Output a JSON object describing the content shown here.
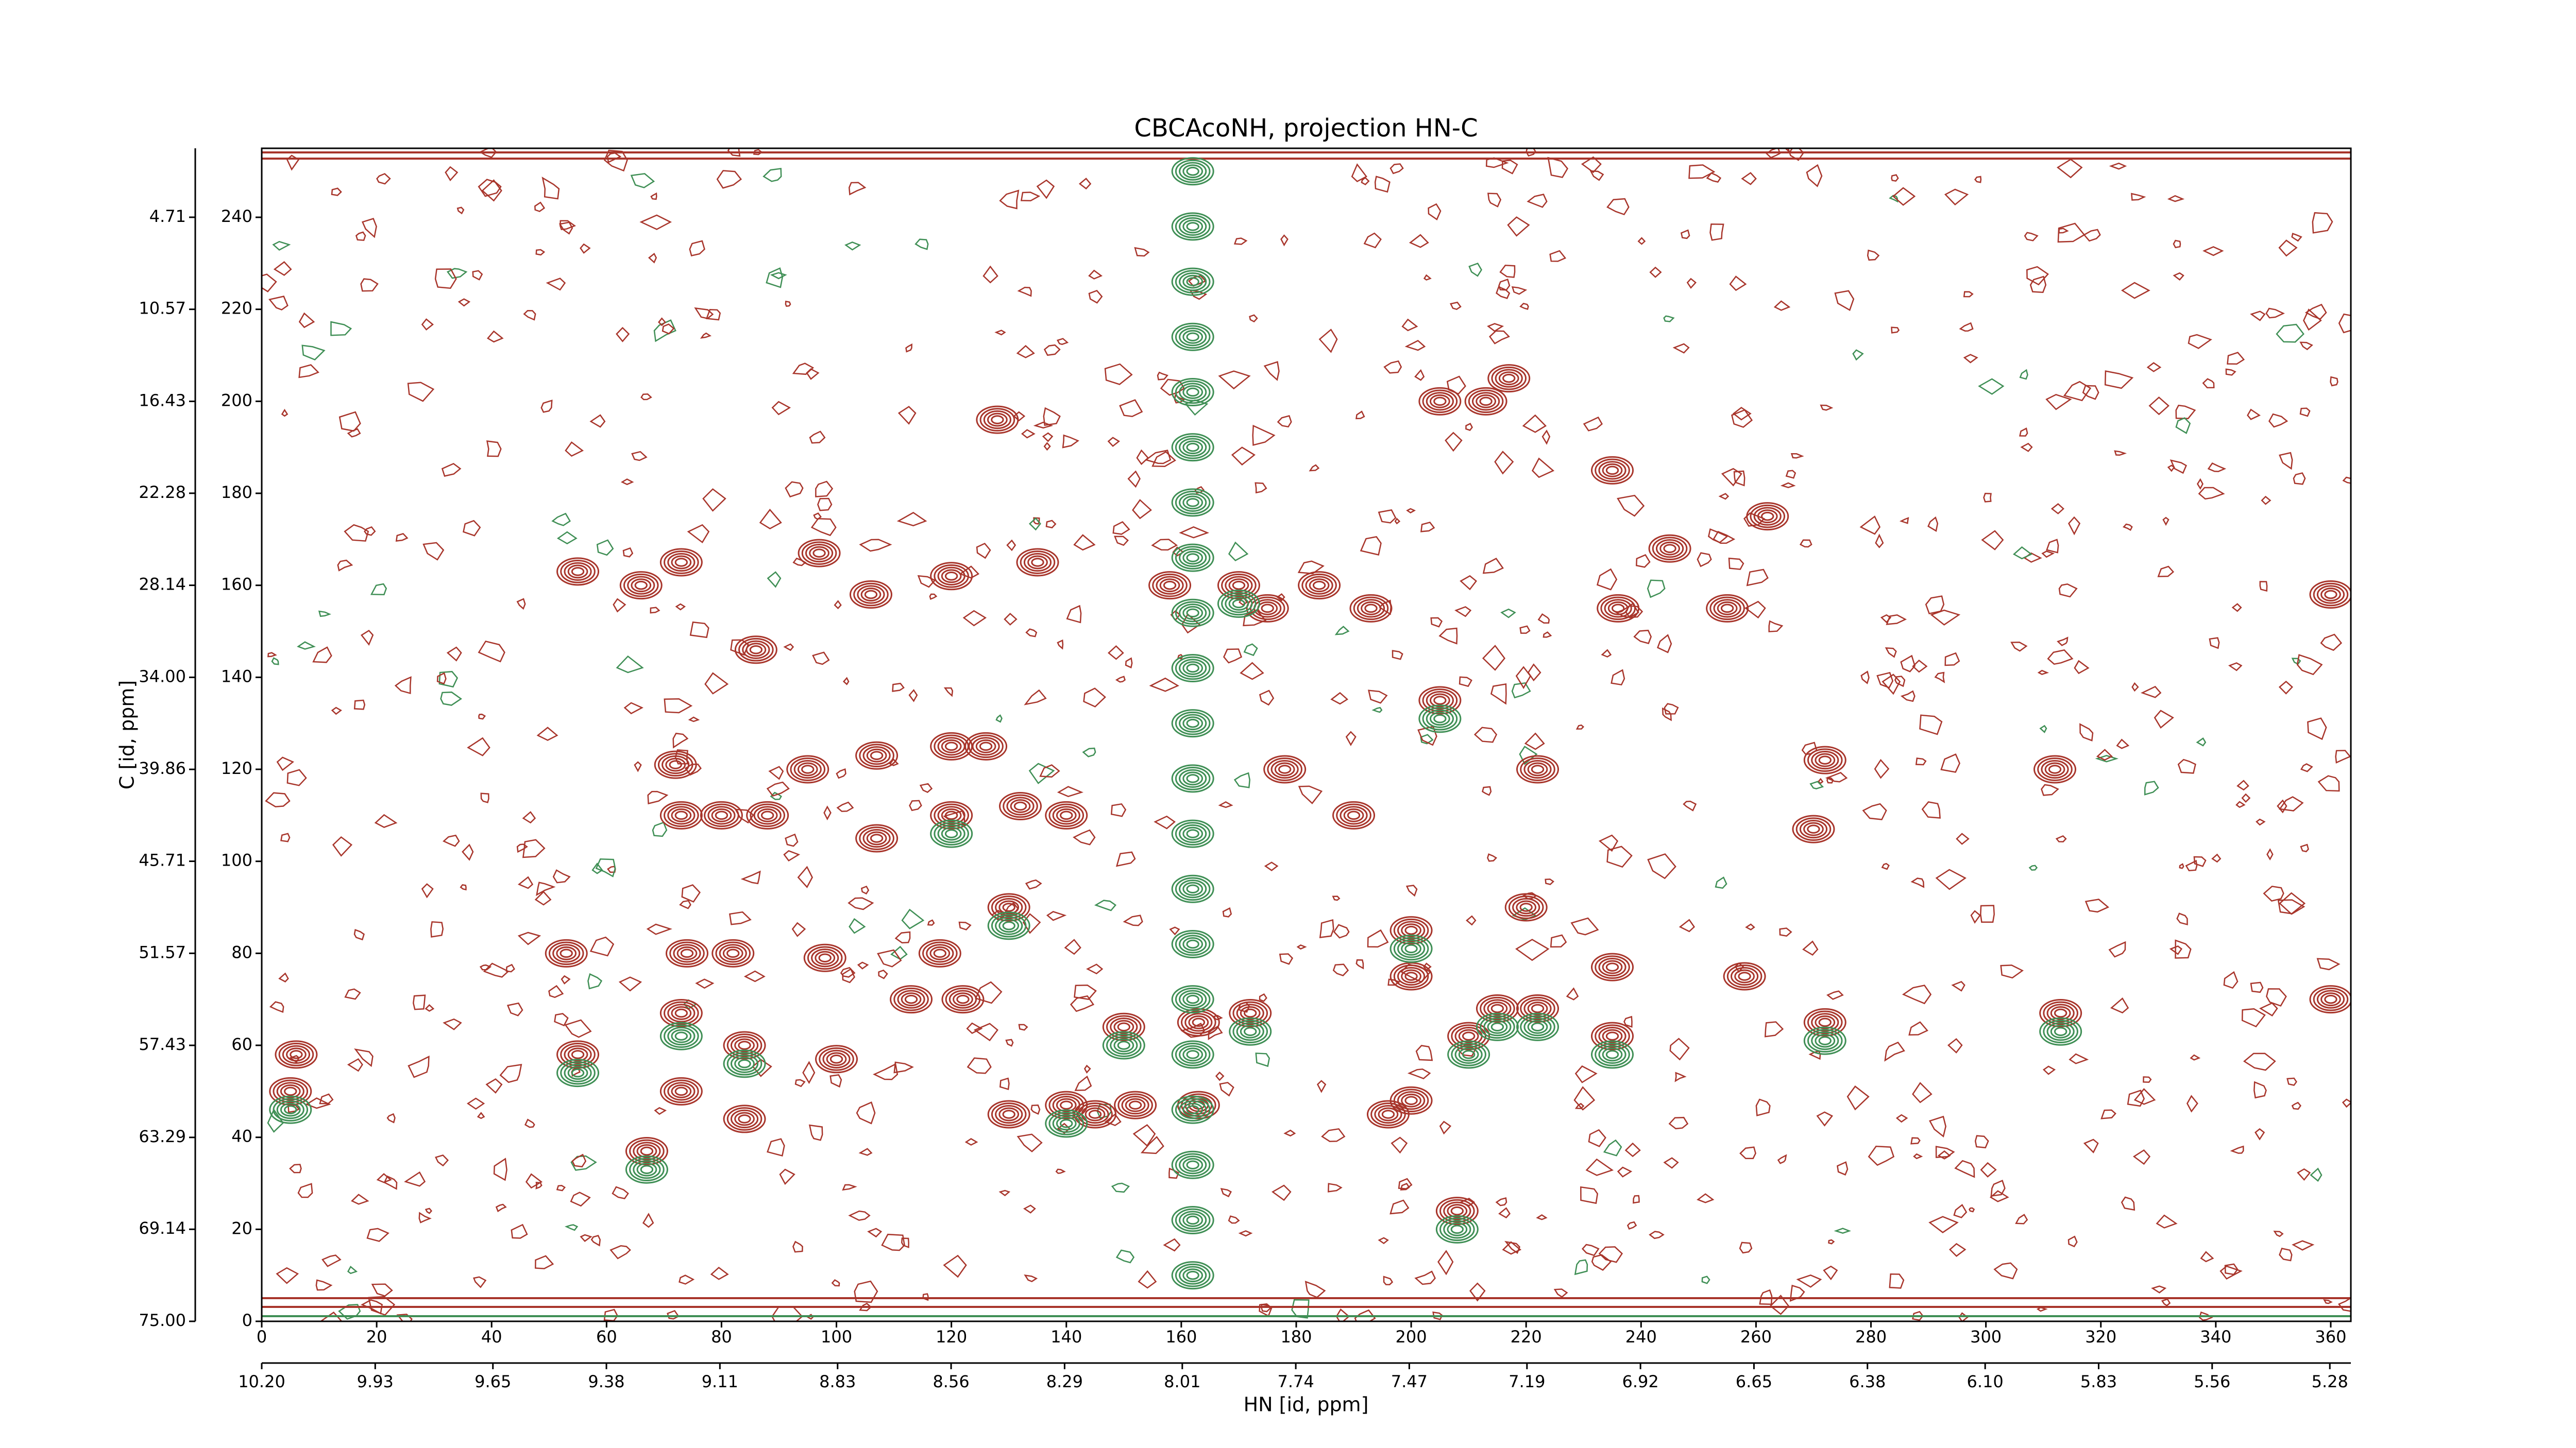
{
  "chart_data": {
    "type": "contour",
    "title": "CBCAcoNH, projection HN-C",
    "xlabel": "HN [id, ppm]",
    "ylabel": "C [id, ppm]",
    "xlim": [
      0,
      363.5
    ],
    "xticks": [
      0,
      20,
      40,
      60,
      80,
      100,
      120,
      140,
      160,
      180,
      200,
      220,
      240,
      260,
      280,
      300,
      320,
      340,
      360
    ],
    "x2lim": [
      10.2,
      5.23
    ],
    "x2ticks": [
      {
        "value": 10.2,
        "label": "10.20"
      },
      9.93,
      9.65,
      9.38,
      9.11,
      8.83,
      8.56,
      8.29,
      8.01,
      7.74,
      7.47,
      7.19,
      6.92,
      6.65,
      6.38,
      {
        "value": 6.1,
        "label": "6.10"
      },
      5.83,
      5.56,
      5.28
    ],
    "ylim": [
      0,
      255
    ],
    "yticks": [
      0,
      20,
      40,
      60,
      80,
      100,
      120,
      140,
      160,
      180,
      200,
      220,
      240
    ],
    "y2lim": [
      75,
      0.32
    ],
    "y2ticks": [
      {
        "value": 75,
        "label": "75.00"
      },
      69.14,
      63.29,
      57.43,
      51.57,
      45.71,
      39.86,
      {
        "value": 34,
        "label": "34.00"
      },
      28.14,
      22.28,
      16.43,
      10.57,
      4.71
    ],
    "series": [
      {
        "color": "#a8352b",
        "x": [
          5,
          6,
          55,
          53,
          55,
          66,
          67,
          73,
          72,
          73,
          74,
          73,
          73,
          80,
          82,
          84,
          84,
          88,
          86,
          95,
          97,
          98,
          100,
          106,
          107,
          107,
          113,
          120,
          120,
          120,
          122,
          126,
          130,
          130,
          128,
          132,
          135,
          140,
          140,
          145,
          150,
          152,
          158,
          163,
          163,
          170,
          172,
          175,
          178,
          184,
          190,
          193,
          196,
          200,
          200,
          200,
          205,
          205,
          208,
          210,
          213,
          215,
          217,
          220,
          222,
          222,
          235,
          236,
          235,
          235,
          245,
          255,
          258,
          262,
          270,
          272,
          272,
          312,
          313,
          360,
          360,
          118
        ],
        "y": [
          50,
          58,
          58,
          80,
          163,
          160,
          37,
          165,
          121,
          110,
          80,
          67,
          50,
          110,
          80,
          60,
          44,
          110,
          146,
          120,
          167,
          79,
          57,
          158,
          105,
          123,
          70,
          162,
          125,
          110,
          70,
          125,
          45,
          90,
          196,
          112,
          165,
          110,
          47,
          45,
          64,
          47,
          160,
          65,
          47,
          160,
          67,
          155,
          120,
          160,
          110,
          155,
          45,
          85,
          75,
          48,
          200,
          135,
          24,
          62,
          200,
          68,
          205,
          90,
          68,
          120,
          185,
          155,
          62,
          77,
          168,
          155,
          75,
          175,
          107,
          122,
          65,
          120,
          67,
          158,
          70,
          80
        ]
      },
      {
        "color": "#3f8f55",
        "x": [
          5,
          55,
          67,
          73,
          84,
          120,
          130,
          140,
          150,
          162,
          162,
          162,
          162,
          162,
          162,
          162,
          162,
          162,
          162,
          162,
          162,
          162,
          162,
          162,
          162,
          162,
          162,
          162,
          162,
          162,
          170,
          172,
          200,
          205,
          208,
          210,
          215,
          222,
          235,
          272,
          313
        ],
        "y": [
          46,
          54,
          33,
          62,
          56,
          106,
          86,
          43,
          60,
          10,
          22,
          34,
          46,
          58,
          70,
          82,
          94,
          106,
          118,
          130,
          142,
          154,
          166,
          178,
          190,
          202,
          214,
          226,
          238,
          250,
          156,
          63,
          81,
          131,
          20,
          58,
          64,
          64,
          58,
          61,
          63
        ]
      }
    ]
  }
}
